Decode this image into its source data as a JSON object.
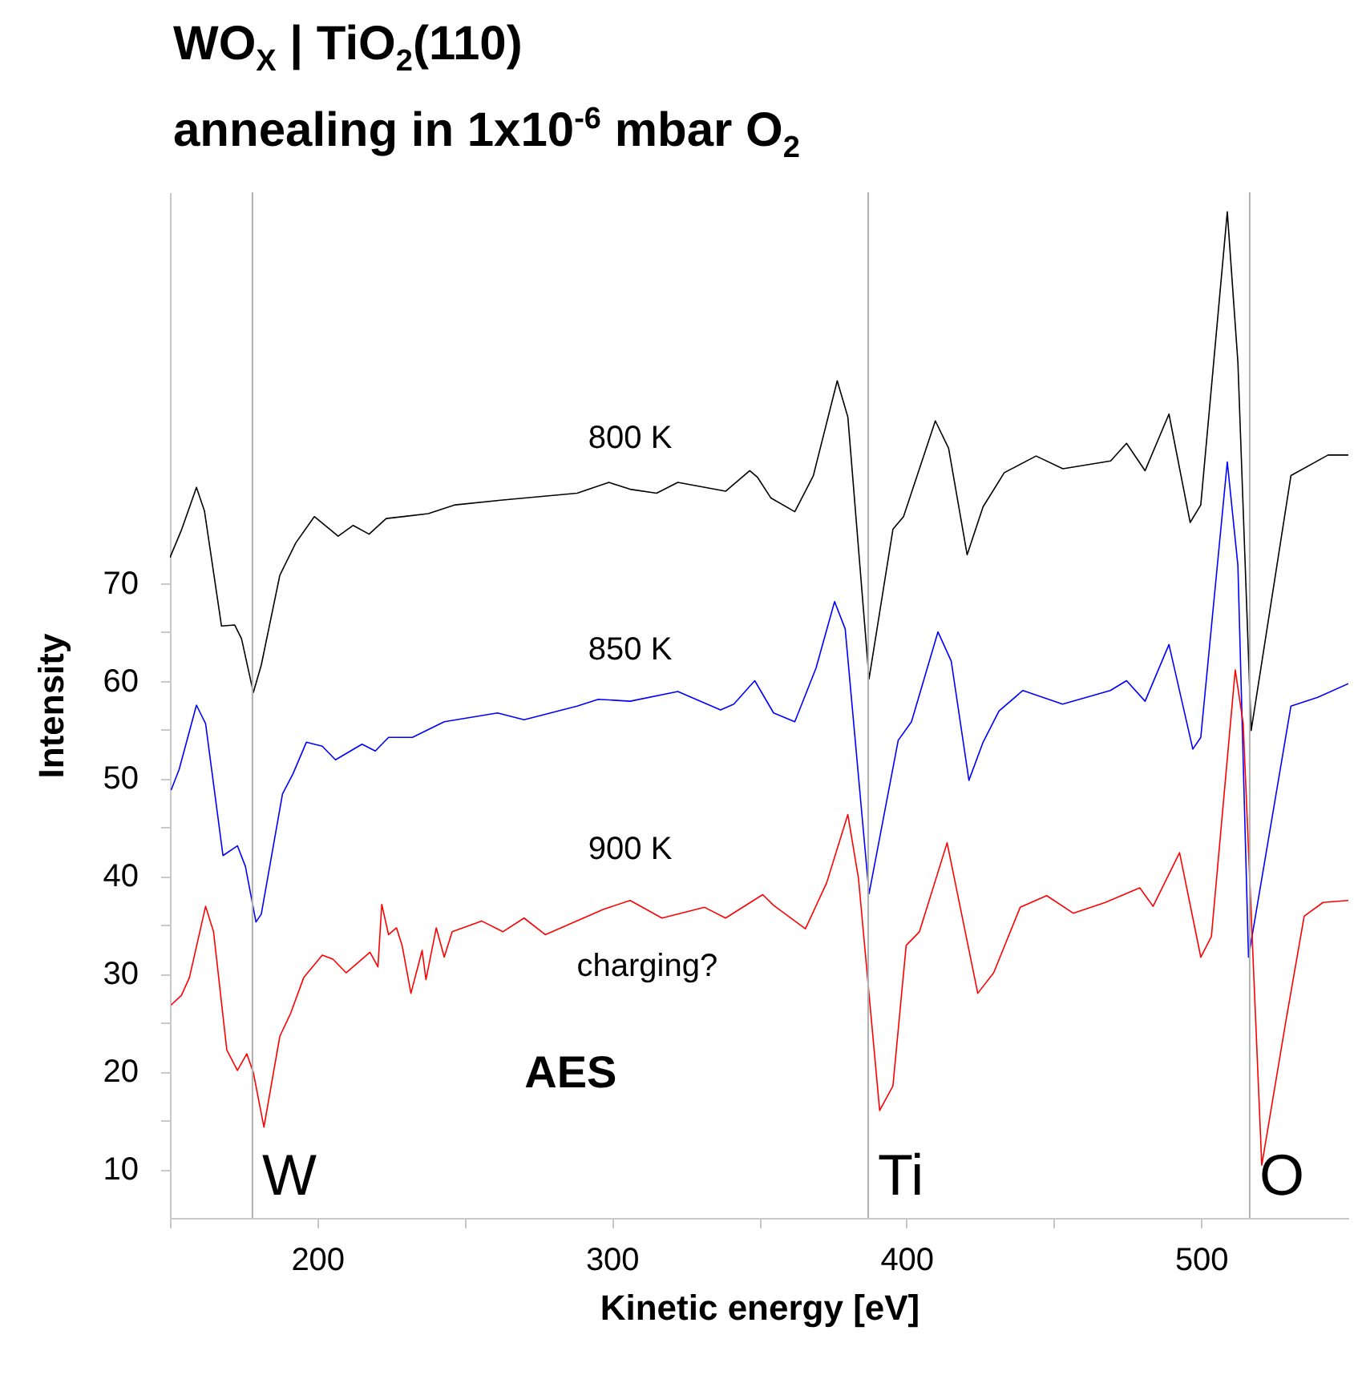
{
  "chart_data": {
    "type": "line",
    "title": "WO$_{X}$ | TiO$_{2}$(110)",
    "subtitle": "annealing in 1x10$^{-6}$ mbar O$_{2}$",
    "xlabel": "Kinetic energy [eV]",
    "ylabel": "Intensity",
    "xlim": [
      150,
      550
    ],
    "ylim": [
      5,
      110
    ],
    "xticks": [
      {
        "value": 150,
        "label": null
      },
      200,
      {
        "value": 250,
        "label": null
      },
      300,
      {
        "value": 350,
        "label": null
      },
      400,
      {
        "value": 450,
        "label": null
      },
      500
    ],
    "yticks": [
      10,
      {
        "value": 15,
        "label": null
      },
      20,
      {
        "value": 25,
        "label": null
      },
      30,
      {
        "value": 35,
        "label": null
      },
      40,
      {
        "value": 45,
        "label": null
      },
      50,
      {
        "value": 55,
        "label": null
      },
      60,
      {
        "value": 65,
        "label": null
      },
      70
    ],
    "series": [
      {
        "name": "800 K",
        "color": "#000000",
        "x": [
          150,
          154,
          159,
          161.7,
          167.5,
          172,
          174.3,
          178.3,
          181,
          187.3,
          192.7,
          199,
          207.1,
          212.2,
          217.6,
          223.4,
          237.7,
          246.8,
          263,
          288.2,
          299,
          306.2,
          315.2,
          322.4,
          338.6,
          346.8,
          349.5,
          354,
          362.1,
          368.4,
          376.5,
          380.1,
          387.3,
          395.4,
          399,
          409.8,
          414.3,
          420.6,
          426,
          433.2,
          444,
          453.1,
          469.3,
          474.7,
          481,
          489.1,
          496.3,
          499.9,
          508.9,
          512.5,
          517,
          530.5,
          543.1,
          550
        ],
        "values": [
          72.6,
          75.5,
          79.8,
          77.4,
          65.6,
          65.7,
          64.3,
          58.8,
          61.6,
          70.8,
          74.1,
          76.8,
          74.8,
          75.9,
          75,
          76.6,
          77.1,
          78,
          78.5,
          79.2,
          80.3,
          79.6,
          79.2,
          80.3,
          79.4,
          81.5,
          80.8,
          78.7,
          77.3,
          81,
          90.7,
          87,
          60.2,
          75.5,
          76.8,
          86.6,
          83.8,
          72.9,
          77.8,
          81.3,
          83,
          81.7,
          82.5,
          84.3,
          81.5,
          87.3,
          76.2,
          78,
          108,
          92.6,
          54.9,
          81,
          83.1,
          83.1
        ]
      },
      {
        "name": "850 K",
        "color": "#0000ff",
        "x": [
          150.4,
          153.1,
          159,
          162.1,
          168,
          172.9,
          175.6,
          179.2,
          181,
          188.2,
          191.8,
          196.3,
          201.7,
          206.2,
          215.2,
          219.7,
          224.2,
          232.3,
          243.1,
          261.2,
          270.2,
          288.2,
          295.4,
          306.2,
          322.4,
          336.9,
          341.4,
          348.5,
          354.9,
          362.1,
          369.3,
          375.6,
          379.2,
          387.3,
          397.2,
          401.7,
          410.7,
          415.2,
          421.2,
          426,
          431.4,
          439.5,
          453,
          469.2,
          474.7,
          481,
          489.1,
          497.2,
          499.9,
          508.9,
          512.5,
          516.1,
          530.5,
          539.6,
          550
        ],
        "values": [
          48.8,
          50.9,
          57.5,
          55.6,
          42.1,
          43.1,
          41,
          35.3,
          36.1,
          48.4,
          50.5,
          53.7,
          53.3,
          51.9,
          53.5,
          52.8,
          54.2,
          54.2,
          55.8,
          56.7,
          56,
          57.4,
          58.1,
          57.9,
          58.9,
          57,
          57.6,
          60,
          56.7,
          55.8,
          61.3,
          68.1,
          65.3,
          38.2,
          53.9,
          55.8,
          65,
          62,
          49.8,
          53.7,
          56.9,
          59,
          57.6,
          59,
          60,
          57.9,
          63.7,
          53,
          54.2,
          82.4,
          71.8,
          31.7,
          57.4,
          58.3,
          59.7
        ]
      },
      {
        "name": "900 K",
        "color": "#ff0000",
        "x": [
          150.4,
          153.9,
          156.6,
          162.1,
          164.8,
          169.3,
          172.9,
          176.1,
          178.3,
          181.9,
          187.3,
          190.9,
          195.4,
          201.7,
          205.3,
          209.8,
          217.9,
          220.6,
          221.9,
          224.2,
          226.9,
          228.8,
          231.8,
          235.6,
          236.9,
          240.4,
          243.1,
          245.8,
          255.8,
          263,
          270.2,
          277.4,
          297.2,
          306.2,
          317,
          331.5,
          338.6,
          351.2,
          354.9,
          365.7,
          372.9,
          380.1,
          383.7,
          390.9,
          395.4,
          399.9,
          404.4,
          413.8,
          424.2,
          429.6,
          438.6,
          447.6,
          456.6,
          467.5,
          479.2,
          483.7,
          492.7,
          499.9,
          503.5,
          511.6,
          514.3,
          520.6,
          528.7,
          535,
          541.4,
          550
        ],
        "values": [
          26.8,
          27.8,
          29.6,
          36.9,
          34.3,
          22.2,
          20.1,
          21.8,
          19.9,
          14.3,
          23.6,
          25.9,
          29.6,
          31.9,
          31.5,
          30.1,
          32.2,
          30.7,
          37.1,
          34,
          34.7,
          32.9,
          28,
          32.4,
          29.4,
          34.7,
          31.7,
          34.3,
          35.4,
          34.3,
          35.7,
          34,
          36.6,
          37.5,
          35.7,
          36.8,
          35.7,
          38.1,
          37,
          34.6,
          39.3,
          46.3,
          39.8,
          16,
          18.5,
          32.9,
          34.3,
          43.4,
          28,
          30.1,
          36.8,
          38,
          36.2,
          37.3,
          38.8,
          36.9,
          42.4,
          31.7,
          33.8,
          61.1,
          55.6,
          10.4,
          25,
          35.9,
          37.3,
          37.5
        ]
      }
    ],
    "ref_lines": [
      {
        "axis": "x",
        "value": 178,
        "label": "W",
        "color": "#b0b0b0"
      },
      {
        "axis": "x",
        "value": 387,
        "label": "Ti",
        "color": "#b0b0b0"
      },
      {
        "axis": "x",
        "value": 516.5,
        "label": "O",
        "color": "#b0b0b0"
      }
    ],
    "annotations": [
      "charging?",
      "AES"
    ]
  }
}
